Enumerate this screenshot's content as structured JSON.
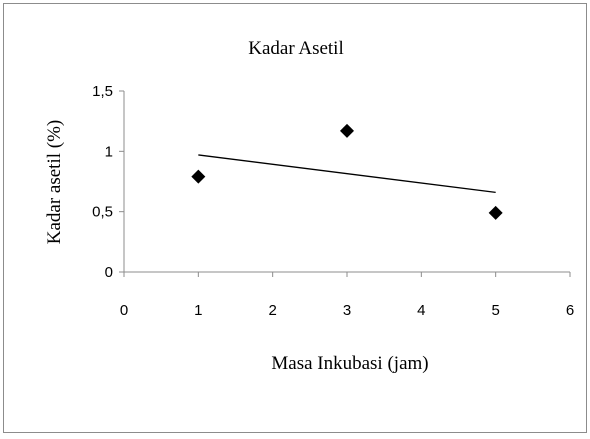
{
  "chart_data": {
    "type": "scatter",
    "title": "Kadar Asetil",
    "xlabel": "Masa Inkubasi (jam)",
    "ylabel": "Kadar asetil (%)",
    "xlim": [
      0,
      6
    ],
    "ylim": [
      0,
      1.5
    ],
    "x_ticks": [
      "0",
      "1",
      "2",
      "3",
      "4",
      "5",
      "6"
    ],
    "y_ticks": [
      "0",
      "0,5",
      "1",
      "1,5"
    ],
    "grid": false,
    "legend": "none",
    "marker": "diamond",
    "marker_color": "#000000",
    "series": [
      {
        "x": [
          1,
          3,
          5
        ],
        "y": [
          0.79,
          1.17,
          0.49
        ]
      }
    ],
    "trendline": {
      "type": "linear",
      "x": [
        1,
        5
      ],
      "y": [
        0.97,
        0.66
      ]
    }
  }
}
